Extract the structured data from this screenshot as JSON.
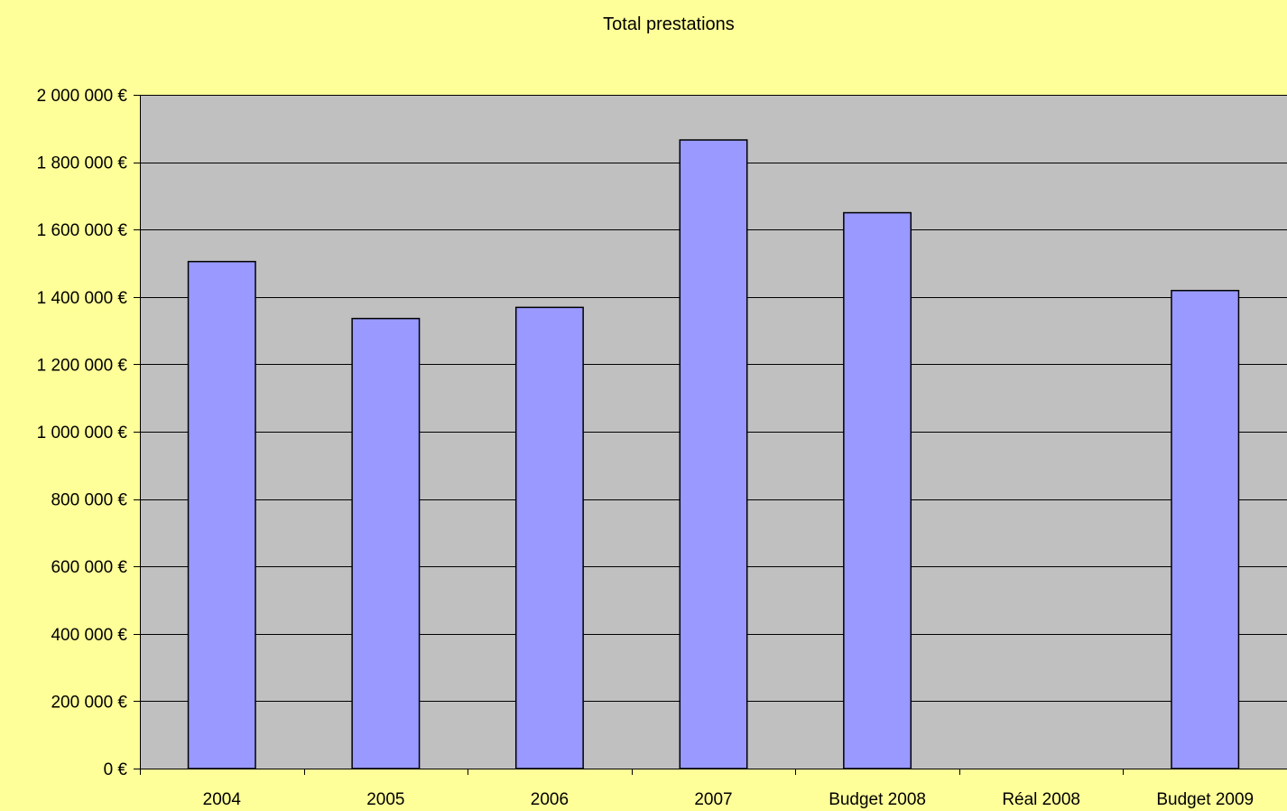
{
  "chart_data": {
    "type": "bar",
    "title": "Total prestations",
    "xlabel": "",
    "ylabel": "",
    "categories": [
      "2004",
      "2005",
      "2006",
      "2007",
      "Budget 2008",
      "Réal 2008",
      "Budget 2009"
    ],
    "values": [
      1505000,
      1336000,
      1369000,
      1866000,
      1650000,
      null,
      1419000
    ],
    "ylim": [
      0,
      2000000
    ],
    "y_ticks": [
      0,
      200000,
      400000,
      600000,
      800000,
      1000000,
      1200000,
      1400000,
      1600000,
      1800000,
      2000000
    ],
    "y_tick_labels": [
      "0 €",
      "200 000 €",
      "400 000 €",
      "600 000 €",
      "800 000 €",
      "1 000 000 €",
      "1 200 000 €",
      "1 400 000 €",
      "1 600 000 €",
      "1 800 000 €",
      "2 000 000 €"
    ],
    "grid": true,
    "legend": "none",
    "colors": {
      "background": "#FFFF99",
      "plot_area": "#C0C0C0",
      "bar_fill": "#9999FF",
      "bar_stroke": "#000000",
      "grid": "#000000"
    }
  }
}
